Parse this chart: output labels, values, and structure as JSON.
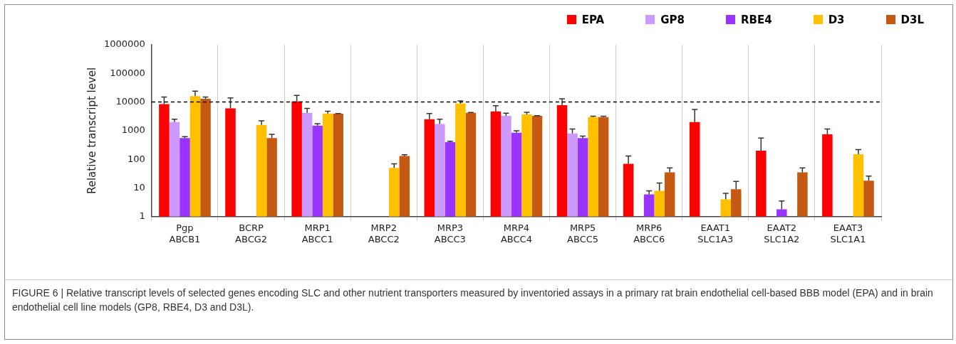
{
  "chart_data": {
    "type": "bar",
    "ylabel": "Relative transcript level",
    "categories": [
      "Pgp\nABCB1",
      "BCRP\nABCG2",
      "MRP1\nABCC1",
      "MRP2\nABCC2",
      "MRP3\nABCC3",
      "MRP4\nABCC4",
      "MRP5\nABCC5",
      "MRP6\nABCC6",
      "EAAT1\nSLC1A3",
      "EAAT2\nSLC1A2",
      "EAAT3\nSLC1A1"
    ],
    "series": [
      {
        "name": "EPA",
        "color": "#ff0000",
        "values": [
          8500,
          6000,
          10500,
          null,
          2500,
          4700,
          7800,
          70,
          2000,
          200,
          750
        ],
        "errors": [
          [
            8500,
            15000
          ],
          [
            6000,
            14000
          ],
          [
            10500,
            17000
          ],
          null,
          [
            2500,
            4000
          ],
          [
            4700,
            7500
          ],
          [
            7800,
            13000
          ],
          [
            70,
            130
          ],
          [
            2000,
            5500
          ],
          [
            200,
            550
          ],
          [
            750,
            1150
          ]
        ]
      },
      {
        "name": "GP8",
        "color": "#cc99ff",
        "values": [
          2000,
          null,
          4200,
          null,
          1700,
          3300,
          800,
          null,
          null,
          null,
          null
        ],
        "errors": [
          [
            2000,
            2500
          ],
          null,
          [
            4200,
            6000
          ],
          null,
          [
            1700,
            2500
          ],
          [
            3300,
            4100
          ],
          [
            800,
            1150
          ],
          null,
          null,
          null,
          null
        ]
      },
      {
        "name": "RBE4",
        "color": "#9933ff",
        "values": [
          550,
          null,
          1500,
          null,
          400,
          850,
          550,
          6,
          null,
          1.8,
          null
        ],
        "errors": [
          [
            550,
            620
          ],
          null,
          [
            1500,
            1750
          ],
          null,
          [
            400,
            430
          ],
          [
            850,
            1000
          ],
          [
            550,
            650
          ],
          [
            6,
            8
          ],
          null,
          [
            1.8,
            3.5
          ],
          null
        ]
      },
      {
        "name": "D3",
        "color": "#ffc000",
        "values": [
          16000,
          1600,
          4000,
          50,
          9000,
          3700,
          3000,
          8,
          4,
          null,
          150
        ],
        "errors": [
          [
            16000,
            24000
          ],
          [
            1600,
            2200
          ],
          [
            4000,
            4800
          ],
          [
            50,
            70
          ],
          [
            9000,
            11000
          ],
          [
            3700,
            4400
          ],
          [
            3000,
            3200
          ],
          [
            8,
            15
          ],
          [
            4,
            6.5
          ],
          null,
          [
            150,
            220
          ]
        ]
      },
      {
        "name": "D3L",
        "color": "#c65911",
        "values": [
          13000,
          550,
          3900,
          130,
          4200,
          3300,
          3000,
          35,
          9,
          35,
          18
        ],
        "errors": [
          [
            13000,
            15000
          ],
          [
            550,
            750
          ],
          [
            3900,
            4000
          ],
          [
            130,
            145
          ],
          [
            4200,
            4300
          ],
          [
            3300,
            3350
          ],
          [
            3000,
            3200
          ],
          [
            35,
            50
          ],
          [
            9,
            17
          ],
          [
            35,
            50
          ],
          [
            18,
            26
          ]
        ]
      }
    ],
    "log": "y",
    "ylim": [
      1,
      1000000
    ],
    "yticks": [
      1,
      10,
      100,
      1000,
      10000,
      100000,
      1000000
    ],
    "grid": "x",
    "legend": "top right",
    "ref_lines": [
      {
        "axis": "y",
        "value": 10000,
        "line_style": "dashed",
        "color": "#000000"
      }
    ],
    "annotations": [
      "FIGURE 6 | Relative transcript levels of selected genes encoding SLC and other nutrient transporters measured by inventoried assays in a primary rat brain endothelial cell-based BBB model (EPA) and in brain endothelial cell line models (GP8, RBE4, D3 and D3L)."
    ]
  }
}
